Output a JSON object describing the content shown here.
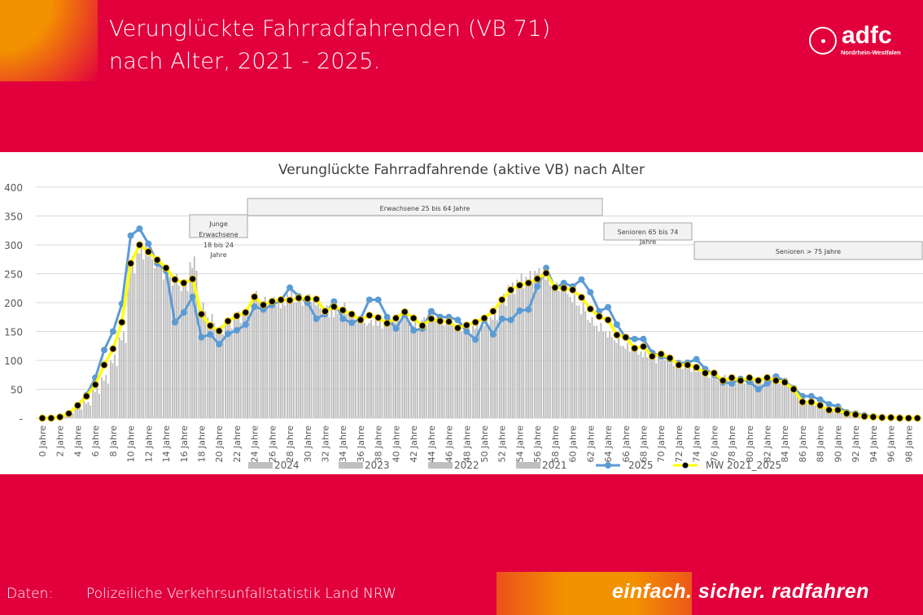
{
  "slide": {
    "title_line1": "Verunglückte Fahrradfahrenden (VB 71)",
    "title_line2": "nach Alter, 2021 - 2025.",
    "logo": {
      "word": "adfc",
      "sub": "Nordrhein-Westfalen"
    },
    "footer": {
      "label": "Daten:",
      "source": "Polizeiliche Verkehrsunfallstatistik Land NRW",
      "slogan": "einfach. sicher. radfahren"
    },
    "colors": {
      "brand_red": "#e2003c",
      "brand_orange": "#f39200"
    }
  },
  "chart_data": {
    "type": "bar",
    "title": "Verunglückte Fahrradfahrende (aktive VB) nach Alter",
    "xlabel": "",
    "ylabel": "",
    "ylim": [
      0,
      400
    ],
    "yticks": [
      0,
      50,
      100,
      150,
      200,
      250,
      300,
      350,
      400
    ],
    "ytick_labels": [
      "-",
      "50",
      "100",
      "150",
      "200",
      "250",
      "300",
      "350",
      "400"
    ],
    "grid": true,
    "legend_position": "bottom",
    "categories": [
      "0 Jahre",
      "1 Jahre",
      "2 Jahre",
      "3 Jahre",
      "4 Jahre",
      "5 Jahre",
      "6 Jahre",
      "7 Jahre",
      "8 Jahre",
      "9 Jahre",
      "10 Jahre",
      "11 Jahre",
      "12 Jahre",
      "13 Jahre",
      "14 Jahre",
      "15 Jahre",
      "16 Jahre",
      "17 Jahre",
      "18 Jahre",
      "19 Jahre",
      "20 Jahre",
      "21 Jahre",
      "22 Jahre",
      "23 Jahre",
      "24 Jahre",
      "25 Jahre",
      "26 Jahre",
      "27 Jahre",
      "28 Jahre",
      "29 Jahre",
      "30 Jahre",
      "31 Jahre",
      "32 Jahre",
      "33 Jahre",
      "34 Jahre",
      "35 Jahre",
      "36 Jahre",
      "37 Jahre",
      "38 Jahre",
      "39 Jahre",
      "40 Jahre",
      "41 Jahre",
      "42 Jahre",
      "43 Jahre",
      "44 Jahre",
      "45 Jahre",
      "46 Jahre",
      "47 Jahre",
      "48 Jahre",
      "49 Jahre",
      "50 Jahre",
      "51 Jahre",
      "52 Jahre",
      "53 Jahre",
      "54 Jahre",
      "55 Jahre",
      "56 Jahre",
      "57 Jahre",
      "58 Jahre",
      "59 Jahre",
      "60 Jahre",
      "61 Jahre",
      "62 Jahre",
      "63 Jahre",
      "64 Jahre",
      "65 Jahre",
      "66 Jahre",
      "67 Jahre",
      "68 Jahre",
      "69 Jahre",
      "70 Jahre",
      "71 Jahre",
      "72 Jahre",
      "73 Jahre",
      "74 Jahre",
      "75 Jahre",
      "76 Jahre",
      "77 Jahre",
      "78 Jahre",
      "79 Jahre",
      "80 Jahre",
      "81 Jahre",
      "82 Jahre",
      "83 Jahre",
      "84 Jahre",
      "85 Jahre",
      "86 Jahre",
      "87 Jahre",
      "88 Jahre",
      "89 Jahre",
      "90 Jahre",
      "91 Jahre",
      "92 Jahre",
      "93 Jahre",
      "94 Jahre",
      "95 Jahre",
      "96 Jahre",
      "97 Jahre",
      "98 Jahre",
      "99 Jahre"
    ],
    "series": [
      {
        "name": "2024",
        "kind": "bar",
        "color": "#bfbfbf",
        "values": [
          1,
          2,
          5,
          10,
          20,
          30,
          50,
          70,
          100,
          140,
          270,
          290,
          300,
          260,
          240,
          230,
          220,
          270,
          195,
          175,
          155,
          160,
          175,
          185,
          215,
          200,
          205,
          200,
          215,
          200,
          210,
          205,
          185,
          190,
          190,
          180,
          175,
          160,
          170,
          165,
          175,
          180,
          165,
          165,
          185,
          175,
          170,
          160,
          150,
          160,
          165,
          175,
          200,
          230,
          240,
          245,
          255,
          250,
          230,
          230,
          210,
          195,
          170,
          160,
          150,
          135,
          125,
          120,
          115,
          105,
          110,
          100,
          95,
          90,
          90,
          80,
          70,
          70,
          65,
          65,
          70,
          65,
          70,
          65,
          60,
          50,
          30,
          28,
          22,
          15,
          12,
          8,
          6,
          4,
          3,
          2,
          1,
          1,
          1,
          0
        ]
      },
      {
        "name": "2023",
        "kind": "bar",
        "color": "#bfbfbf",
        "values": [
          1,
          1,
          4,
          8,
          18,
          25,
          45,
          65,
          95,
          135,
          260,
          285,
          280,
          270,
          250,
          235,
          230,
          260,
          190,
          165,
          150,
          165,
          170,
          180,
          205,
          195,
          200,
          190,
          205,
          205,
          200,
          195,
          180,
          175,
          185,
          175,
          170,
          165,
          160,
          170,
          165,
          175,
          160,
          170,
          175,
          170,
          160,
          160,
          150,
          155,
          160,
          170,
          200,
          215,
          230,
          240,
          250,
          240,
          225,
          220,
          200,
          180,
          165,
          150,
          140,
          130,
          120,
          115,
          105,
          100,
          100,
          95,
          90,
          85,
          80,
          75,
          70,
          65,
          70,
          60,
          65,
          60,
          65,
          60,
          55,
          45,
          28,
          25,
          18,
          12,
          10,
          6,
          5,
          3,
          2,
          1,
          1,
          0,
          0,
          0
        ]
      },
      {
        "name": "2022",
        "kind": "bar",
        "color": "#bfbfbf",
        "values": [
          1,
          2,
          4,
          9,
          20,
          28,
          55,
          75,
          110,
          150,
          280,
          300,
          290,
          280,
          260,
          250,
          240,
          280,
          200,
          180,
          160,
          170,
          185,
          190,
          220,
          210,
          210,
          205,
          225,
          210,
          215,
          200,
          195,
          200,
          200,
          185,
          180,
          170,
          170,
          175,
          180,
          185,
          170,
          175,
          190,
          180,
          175,
          170,
          160,
          165,
          175,
          185,
          215,
          235,
          250,
          255,
          260,
          255,
          235,
          230,
          215,
          200,
          175,
          165,
          150,
          140,
          130,
          125,
          115,
          110,
          110,
          105,
          95,
          90,
          90,
          80,
          75,
          75,
          70,
          70,
          75,
          70,
          75,
          70,
          60,
          50,
          32,
          30,
          22,
          15,
          12,
          8,
          6,
          4,
          3,
          2,
          1,
          1,
          0,
          0
        ]
      },
      {
        "name": "2021",
        "kind": "bar",
        "color": "#bfbfbf",
        "values": [
          1,
          1,
          3,
          8,
          15,
          22,
          42,
          60,
          90,
          130,
          250,
          275,
          275,
          265,
          245,
          230,
          220,
          255,
          185,
          165,
          145,
          155,
          165,
          175,
          200,
          190,
          195,
          195,
          200,
          195,
          200,
          190,
          175,
          180,
          180,
          170,
          165,
          160,
          155,
          165,
          165,
          170,
          155,
          160,
          170,
          160,
          160,
          150,
          145,
          150,
          160,
          170,
          195,
          215,
          225,
          235,
          245,
          230,
          220,
          215,
          195,
          185,
          160,
          150,
          140,
          125,
          115,
          110,
          105,
          95,
          100,
          90,
          85,
          80,
          80,
          70,
          65,
          65,
          60,
          60,
          65,
          60,
          65,
          60,
          55,
          45,
          25,
          22,
          18,
          12,
          10,
          6,
          4,
          3,
          2,
          1,
          1,
          0,
          0,
          0
        ]
      },
      {
        "name": "2025",
        "kind": "line",
        "color": "#5b9bd5",
        "values": [
          0,
          0,
          2,
          8,
          22,
          40,
          70,
          118,
          150,
          198,
          316,
          328,
          302,
          268,
          255,
          166,
          183,
          210,
          140,
          145,
          128,
          146,
          152,
          162,
          193,
          188,
          196,
          204,
          226,
          211,
          200,
          172,
          180,
          202,
          172,
          165,
          172,
          205,
          205,
          175,
          155,
          180,
          152,
          155,
          185,
          175,
          175,
          170,
          150,
          136,
          170,
          145,
          172,
          170,
          186,
          188,
          228,
          260,
          225,
          234,
          228,
          240,
          218,
          185,
          192,
          162,
          139,
          137,
          137,
          113,
          107,
          102,
          95,
          96,
          102,
          85,
          75,
          62,
          60,
          68,
          63,
          50,
          60,
          72,
          64,
          52,
          38,
          38,
          32,
          24,
          20,
          10,
          8,
          5,
          3,
          2,
          1,
          1,
          0,
          0
        ]
      },
      {
        "name": "MW 2021_2025",
        "kind": "line-marker",
        "color": "#ffff00",
        "marker": "#000000",
        "values": [
          0,
          0,
          2,
          8,
          22,
          38,
          58,
          92,
          120,
          166,
          268,
          300,
          288,
          274,
          260,
          240,
          234,
          241,
          180,
          160,
          151,
          168,
          177,
          183,
          210,
          196,
          202,
          205,
          204,
          208,
          207,
          206,
          185,
          193,
          187,
          180,
          170,
          178,
          174,
          164,
          173,
          184,
          173,
          160,
          172,
          168,
          167,
          156,
          161,
          166,
          173,
          185,
          205,
          222,
          230,
          234,
          241,
          251,
          226,
          225,
          222,
          209,
          189,
          176,
          170,
          144,
          140,
          121,
          124,
          107,
          111,
          104,
          92,
          92,
          88,
          78,
          78,
          65,
          70,
          65,
          70,
          65,
          70,
          65,
          62,
          50,
          28,
          28,
          22,
          14,
          14,
          8,
          6,
          3,
          2,
          1,
          1,
          0,
          0,
          0
        ]
      }
    ],
    "annotations": [
      {
        "text": "Junge Erwachsene 18 bis 24 Jahre",
        "lines": [
          "Junge",
          "Erwachsene",
          "18 bis 24",
          "Jahre"
        ]
      },
      {
        "text": "Erwachsene 25 bis 64 Jahre",
        "lines": [
          "Erwachsene 25 bis 64 Jahre"
        ]
      },
      {
        "text": "Senioren 65 bis 74 Jahre",
        "lines": [
          "Senioren 65 bis 74",
          "Jahre"
        ]
      },
      {
        "text": "Senioren > 75 Jahre",
        "lines": [
          "Senioren > 75 Jahre"
        ]
      }
    ]
  }
}
